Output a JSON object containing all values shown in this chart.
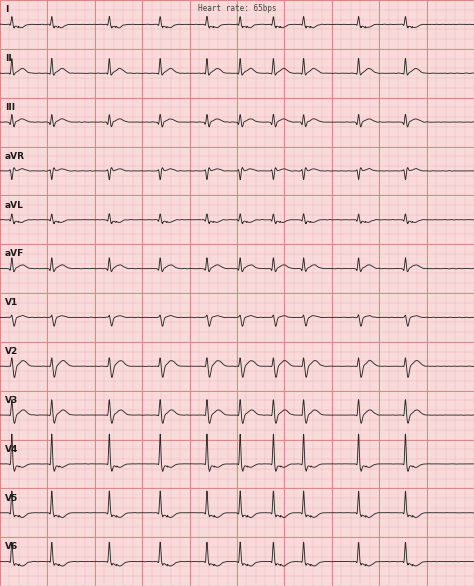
{
  "title": "Heart rate: 65bps",
  "bg_color": "#f9dada",
  "grid_minor_color": "#ebb8b8",
  "grid_major_color": "#d98888",
  "line_color": "#2a2a2a",
  "leads": [
    "I",
    "II",
    "III",
    "aVR",
    "aVL",
    "aVF",
    "V1",
    "V2",
    "V3",
    "V4",
    "V5",
    "V6"
  ],
  "n_leads": 12,
  "fig_width": 4.74,
  "fig_height": 5.86,
  "dpi": 100,
  "lead_label_fontsize": 6.5,
  "title_fontsize": 5.5
}
